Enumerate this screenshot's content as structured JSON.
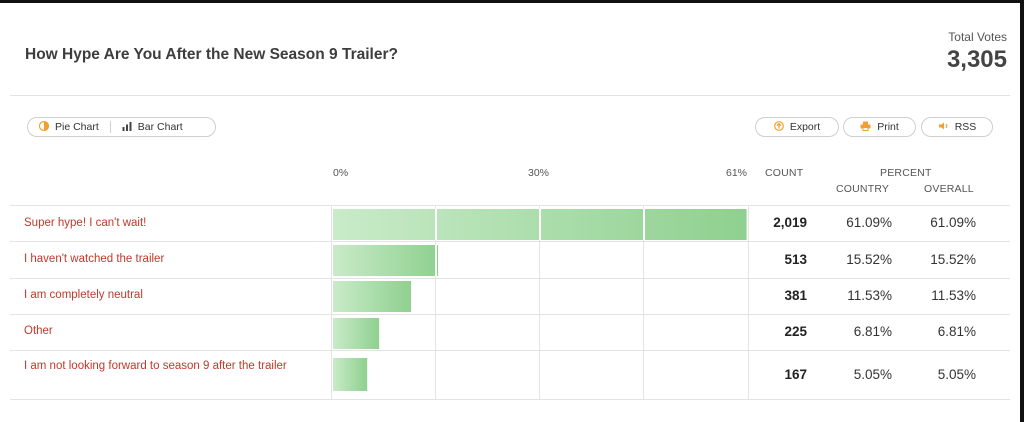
{
  "header": {
    "title": "How Hype Are You After the New Season 9 Trailer?",
    "total_label": "Total Votes",
    "total_value": "3,305"
  },
  "toggle": {
    "pie_label": "Pie Chart",
    "bar_label": "Bar Chart"
  },
  "actions": {
    "export_label": "Export",
    "print_label": "Print",
    "rss_label": "RSS"
  },
  "columns": {
    "count": "COUNT",
    "percent": "PERCENT",
    "country": "COUNTRY",
    "overall": "OVERALL"
  },
  "colors": {
    "bar": "#a8dba8",
    "label": "#c0392b",
    "icon_orange": "#f0a030"
  },
  "chart_data": {
    "type": "bar",
    "orientation": "horizontal",
    "xaxis_ticks": [
      "0%",
      "30%",
      "61%"
    ],
    "xlim": [
      0,
      61
    ],
    "categories": [
      "Super hype! I can't wait!",
      "I haven't watched the trailer",
      "I am completely neutral",
      "Other",
      "I am not looking forward to season 9 after the trailer"
    ],
    "counts": [
      "2,019",
      "513",
      "381",
      "225",
      "167"
    ],
    "values": [
      61.09,
      15.52,
      11.53,
      6.81,
      5.05
    ],
    "country_percent": [
      "61.09%",
      "15.52%",
      "11.53%",
      "6.81%",
      "5.05%"
    ],
    "overall_percent": [
      "61.09%",
      "15.52%",
      "11.53%",
      "6.81%",
      "5.05%"
    ]
  }
}
